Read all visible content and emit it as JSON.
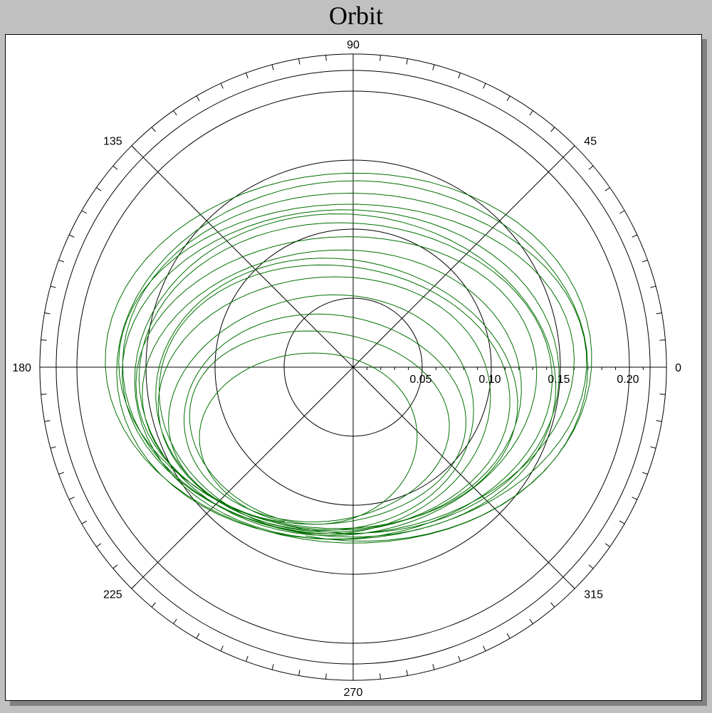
{
  "title": "Orbit",
  "colors": {
    "trace": "#007000",
    "axis": "#000000",
    "background": "#ffffff",
    "window": "#c0c0c0"
  },
  "chart_data": {
    "type": "polar-line",
    "title": "Orbit",
    "radial_ticks": [
      {
        "value": 0.05,
        "label": "0.05"
      },
      {
        "value": 0.1,
        "label": "0.10"
      },
      {
        "value": 0.15,
        "label": "0.15"
      },
      {
        "value": 0.2,
        "label": "0.20"
      }
    ],
    "radial_range": [
      0,
      0.215
    ],
    "angle_labels": [
      {
        "angle": 0,
        "label": "0"
      },
      {
        "angle": 45,
        "label": "45"
      },
      {
        "angle": 90,
        "label": "90"
      },
      {
        "angle": 135,
        "label": "135"
      },
      {
        "angle": 180,
        "label": "180"
      },
      {
        "angle": 225,
        "label": "225"
      },
      {
        "angle": 270,
        "label": "270"
      },
      {
        "angle": 315,
        "label": "315"
      }
    ],
    "spokes_every_deg": 45,
    "ring_tick_every_deg": 5,
    "grid": true,
    "orbit": {
      "units": "cartesian in radial-axis units (x = r·cosθ, y = r·sinθ)",
      "start": [
        -0.054,
        -0.113
      ],
      "revolutions": 16,
      "points_per_revolution": 72,
      "center_start": [
        -0.04,
        -0.062
      ],
      "center_end": [
        0.0,
        0.008
      ],
      "rx_start": 0.06,
      "rx_end": 0.178,
      "ry_start": 0.048,
      "ry_end": 0.133,
      "cap_x": [
        -0.19,
        0.182
      ],
      "cap_y": [
        -0.198,
        0.142
      ]
    }
  }
}
